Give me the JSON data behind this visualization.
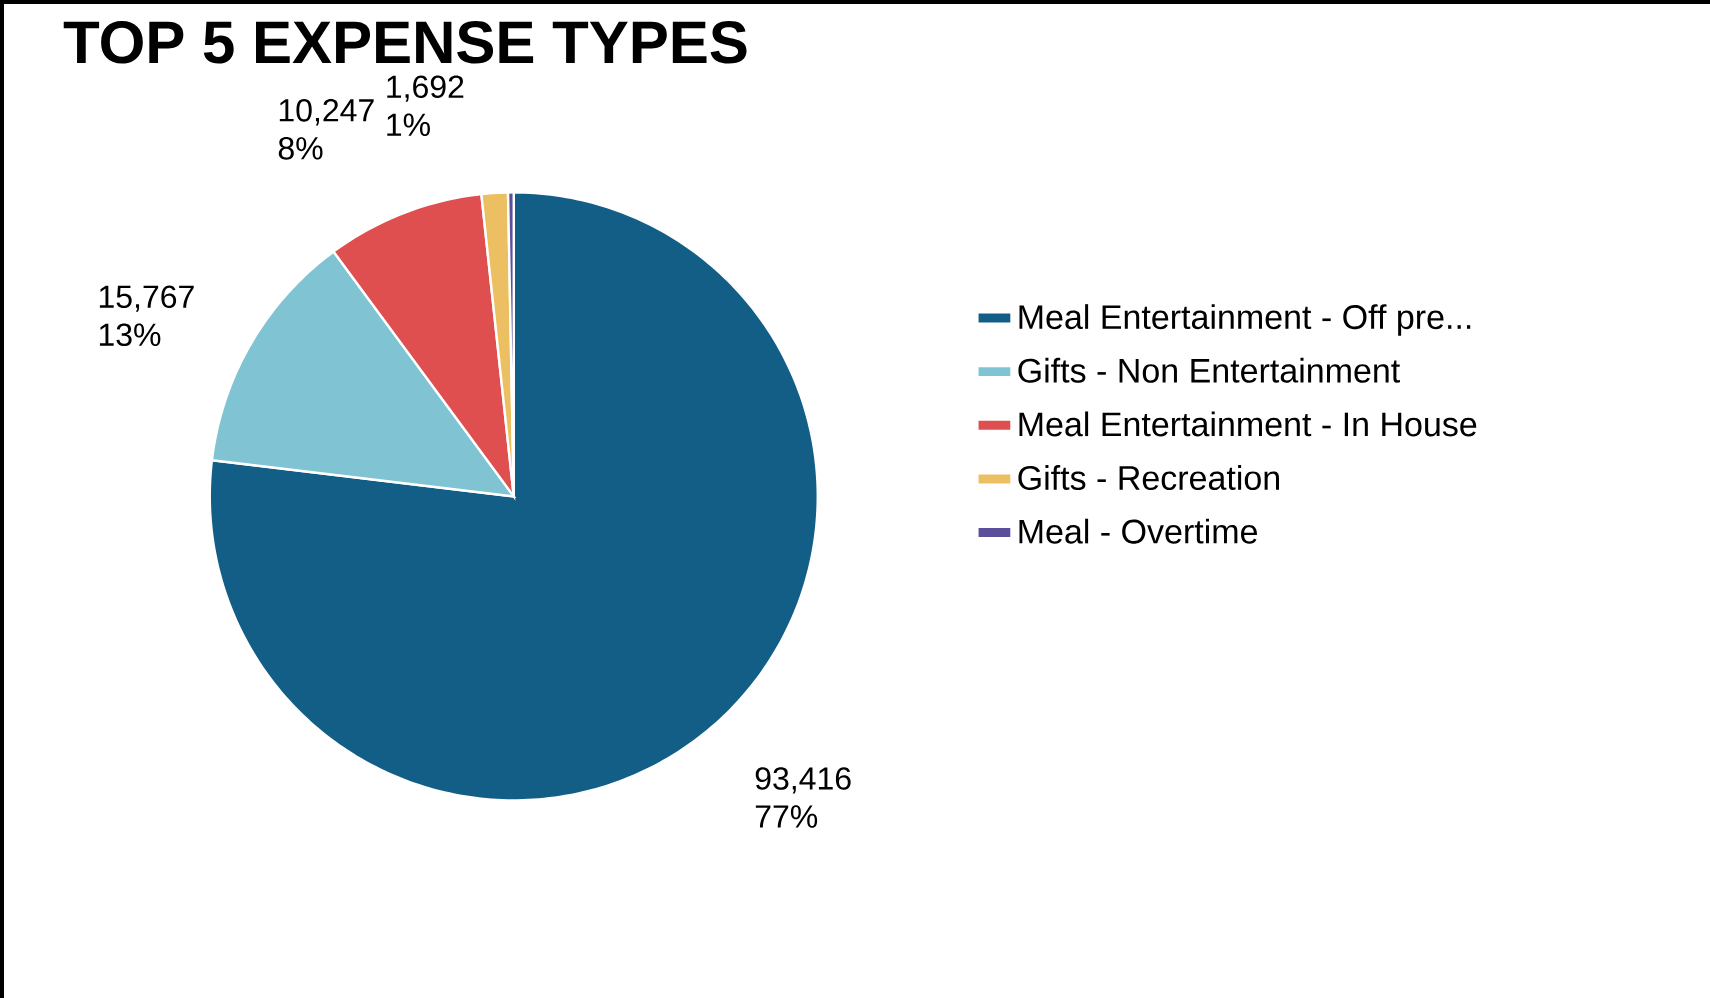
{
  "chart_data": {
    "type": "pie",
    "title": "TOP 5 EXPENSE TYPES",
    "categories": [
      "Meal Entertainment - Off pre...",
      "Gifts - Non Entertainment",
      "Meal Entertainment - In House",
      "Gifts - Recreation",
      "Meal - Overtime"
    ],
    "values": [
      76.9,
      13.0,
      8.4,
      1.4,
      0.3
    ],
    "colors": [
      "#135e86",
      "#80c4d4",
      "#e04f4f",
      "#ecc062",
      "#5c4f9a"
    ],
    "value_labels": [
      "93,416 77%",
      "15,767 13%",
      "10,247 8%",
      "1,692 1%",
      null
    ],
    "legend": "right"
  }
}
